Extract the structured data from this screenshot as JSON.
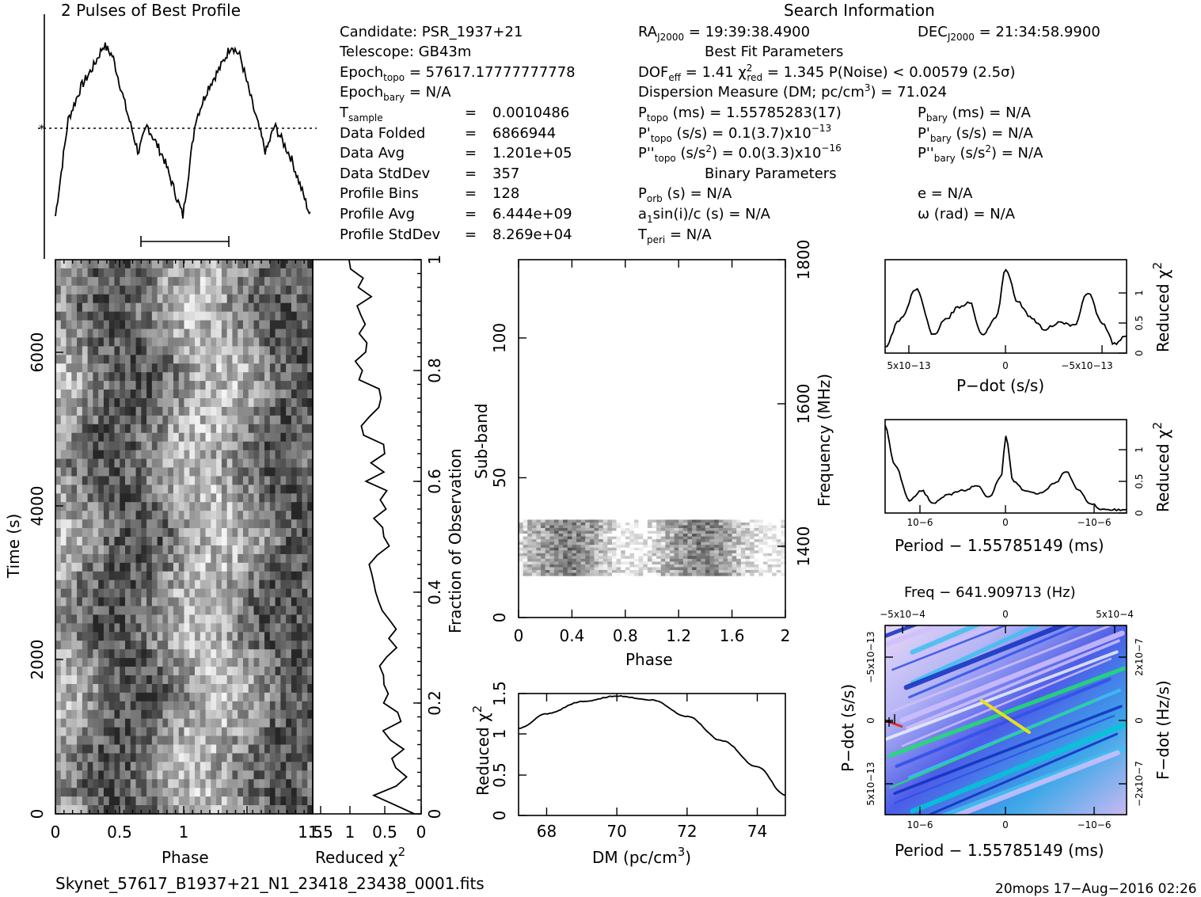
{
  "texts": {
    "profile_title": "2 Pulses of Best Profile",
    "search_title": "Search Information",
    "candidate": "Candidate:  PSR_1937+21",
    "telescope": "Telescope:  GB43m",
    "epoch_topo_lbl": "Epoch",
    "epoch_topo_sub": "topo",
    "epoch_topo_val": " = 57617.17777777778",
    "epoch_bary_lbl": "Epoch",
    "epoch_bary_sub": "bary",
    "epoch_bary_val": " = N/A",
    "tsample_lbl": "T",
    "tsample_sub": "sample",
    "tsample_eq": "=",
    "tsample_val": "0.0010486",
    "folded_lbl": "Data Folded",
    "folded_val": "6866944",
    "avg_lbl": "Data Avg",
    "avg_val": "1.201e+05",
    "std_lbl": "Data StdDev",
    "std_val": "357",
    "bins_lbl": "Profile Bins",
    "bins_val": "128",
    "pavg_lbl": "Profile Avg",
    "pavg_val": "6.444e+09",
    "pstd_lbl": "Profile StdDev",
    "pstd_val": "8.269e+04",
    "eq": "=",
    "ra_lbl": "RA",
    "ra_sub": "J2000",
    "ra_val": " = 19:39:38.4900",
    "dec_lbl": "DEC",
    "dec_sub": "J2000",
    "dec_val": " = 21:34:58.9900",
    "best_fit": "Best Fit Parameters",
    "dof_lbl": "DOF",
    "dof_sub": "eff",
    "dof_val": " = 1.41   χ",
    "chi_sup": "2",
    "chi_sub": "red",
    "chi_val": " = 1.345   P(Noise) < 0.00579   (2.5σ)",
    "dm_line": "Dispersion Measure (DM; pc/cm",
    "dm_sup": "3",
    "dm_val": ") = 71.024",
    "ptopo_lbl": "P",
    "ptopo_sub": "topo",
    "ptopo_val": " (ms) =  1.55785283(17)",
    "pbary_lbl": "P",
    "pbary_sub": "bary",
    "pbary_val": " (ms) = N/A",
    "pdtopo_lbl": "P'",
    "pdtopo_sub": "topo",
    "pdtopo_val": " (s/s) =  0.1(3.7)x10",
    "pdtopo_exp": "−13",
    "pdbary_lbl": "P'",
    "pdbary_sub": "bary",
    "pdbary_val": " (s/s) = N/A",
    "pddtopo_lbl": "P''",
    "pddtopo_sub": "topo",
    "pddtopo_val": " (s/s",
    "pddtopo_sup": "2",
    "pddtopo_val2": ") = 0.0(3.3)x10",
    "pddtopo_exp": "−16",
    "pddbary_lbl": "P''",
    "pddbary_sub": "bary",
    "pddbary_val": " (s/s",
    "pddbary_sup": "2",
    "pddbary_val2": ") = N/A",
    "binary_title": "Binary Parameters",
    "porb_lbl": "P",
    "porb_sub": "orb",
    "porb_val": " (s) = N/A",
    "e_line": "e = N/A",
    "a1_lbl": "a",
    "a1_sub": "1",
    "a1_val": "sin(i)/c (s) = N/A",
    "omega_line": "ω (rad) = N/A",
    "tperi_lbl": "T",
    "tperi_sub": "peri",
    "tperi_val": " = N/A",
    "filename": "Skynet_57617_B1937+21_N1_23418_23438_0001.fits",
    "footer_right": "20mops 17−Aug−2016 02:26"
  },
  "chart_data": [
    {
      "type": "line",
      "id": "pulse_profile",
      "title": "2 Pulses of Best Profile",
      "x_range": [
        0,
        2
      ],
      "pulses_shown": 2,
      "description_points": [
        [
          0.0,
          0.05
        ],
        [
          0.1,
          0.55
        ],
        [
          0.2,
          0.72
        ],
        [
          0.3,
          0.83
        ],
        [
          0.38,
          0.94
        ],
        [
          0.45,
          0.88
        ],
        [
          0.55,
          0.62
        ],
        [
          0.65,
          0.38
        ],
        [
          0.72,
          0.52
        ],
        [
          0.85,
          0.35
        ],
        [
          1.0,
          0.05
        ],
        [
          1.1,
          0.55
        ],
        [
          1.2,
          0.72
        ],
        [
          1.3,
          0.83
        ],
        [
          1.38,
          0.94
        ],
        [
          1.45,
          0.88
        ],
        [
          1.55,
          0.62
        ],
        [
          1.65,
          0.38
        ],
        [
          1.72,
          0.52
        ],
        [
          1.85,
          0.35
        ],
        [
          2.0,
          0.05
        ]
      ]
    },
    {
      "type": "heatmap",
      "id": "time_phase",
      "xlabel": "Phase",
      "ylabel": "Time (s)",
      "xlim": [
        0,
        1.5
      ],
      "ylim": [
        0,
        7200
      ],
      "xticks": [
        "0",
        "0.5",
        "1",
        "1.5"
      ],
      "yticks": [
        "0",
        "2000",
        "4000",
        "6000"
      ],
      "colormap": "grayscale"
    },
    {
      "type": "line",
      "id": "time_reduced_chi2",
      "xlabel": "Reduced χ2",
      "y2label": "Fraction of Observation",
      "xticks": [
        "1.5",
        "1",
        "0.5",
        "0"
      ],
      "y2ticks": [
        "0",
        "0.2",
        "0.4",
        "0.6",
        "0.8",
        "1"
      ]
    },
    {
      "type": "heatmap",
      "id": "subband_phase",
      "xlabel": "Phase",
      "ylabel": "Sub-band",
      "y2label": "Frequency (MHz)",
      "xlim": [
        0,
        2
      ],
      "ylim": [
        0,
        128
      ],
      "xticks": [
        "0",
        "0.4",
        "0.8",
        "1.2",
        "1.6",
        "2"
      ],
      "yticks": [
        "0",
        "50",
        "100"
      ],
      "y2ticks": [
        "1400",
        "1600",
        "1800"
      ],
      "occupied_subbands": [
        15,
        35
      ],
      "colormap": "grayscale"
    },
    {
      "type": "line",
      "id": "dm_curve",
      "xlabel": "DM (pc/cm3)",
      "ylabel": "Reduced χ2",
      "xlim": [
        67.2,
        74.8
      ],
      "ylim": [
        0,
        1.5
      ],
      "xticks": [
        "68",
        "70",
        "72",
        "74"
      ],
      "yticks": [
        "0",
        "0.5",
        "1",
        "1.5"
      ],
      "x": [
        67.2,
        68.0,
        69.0,
        70.0,
        71.0,
        72.0,
        73.0,
        74.0,
        74.8
      ],
      "y": [
        1.07,
        1.25,
        1.4,
        1.47,
        1.42,
        1.22,
        0.92,
        0.6,
        0.25
      ]
    },
    {
      "type": "line",
      "id": "pdot_curve",
      "xlabel": "P−dot (s/s)",
      "ylabel": "Reduced χ2",
      "xticks": [
        "5x10−13",
        "0",
        "−5x10−13"
      ],
      "yticks": [
        "0",
        "0.5",
        "1"
      ],
      "x": [
        0.0,
        0.06,
        0.13,
        0.2,
        0.25,
        0.3,
        0.35,
        0.4,
        0.46,
        0.5,
        0.55,
        0.6,
        0.66,
        0.72,
        0.78,
        0.84,
        0.9,
        0.95,
        1.0
      ],
      "y": [
        0.1,
        0.55,
        1.05,
        0.3,
        0.55,
        0.75,
        0.85,
        0.3,
        0.6,
        1.4,
        0.85,
        0.6,
        0.4,
        0.5,
        0.45,
        1.0,
        0.5,
        0.15,
        0.3
      ]
    },
    {
      "type": "line",
      "id": "period_curve",
      "xlabel": "Period − 1.55785149 (ms)",
      "ylabel": "Reduced χ2",
      "xticks": [
        "10−6",
        "0",
        "−10−6"
      ],
      "yticks": [
        "0",
        "0.5",
        "1"
      ],
      "x": [
        0.0,
        0.04,
        0.1,
        0.15,
        0.2,
        0.26,
        0.32,
        0.38,
        0.43,
        0.48,
        0.5,
        0.53,
        0.58,
        0.64,
        0.7,
        0.75,
        0.8,
        0.85,
        0.9,
        1.0
      ],
      "y": [
        1.35,
        0.75,
        0.2,
        0.35,
        0.15,
        0.28,
        0.35,
        0.42,
        0.25,
        0.55,
        1.2,
        0.5,
        0.35,
        0.3,
        0.45,
        0.65,
        0.35,
        0.15,
        0.05,
        0.05
      ]
    },
    {
      "type": "heatmap",
      "id": "period_pdot",
      "title": "Freq − 641.909713 (Hz)",
      "xlabel": "Period − 1.55785149 (ms)",
      "ylabel": "P−dot (s/s)",
      "y2label": "F−dot (Hz/s)",
      "xticks": [
        "10−6",
        "0",
        "−10−6"
      ],
      "x2ticks": [
        "−5x10−4",
        "0",
        "5x10−4"
      ],
      "yticks": [
        "5x10−13",
        "0",
        "−5x10−13"
      ],
      "y2ticks": [
        "−2x10−7",
        "0",
        "2x10−7"
      ],
      "colormap": "rainbow"
    }
  ]
}
